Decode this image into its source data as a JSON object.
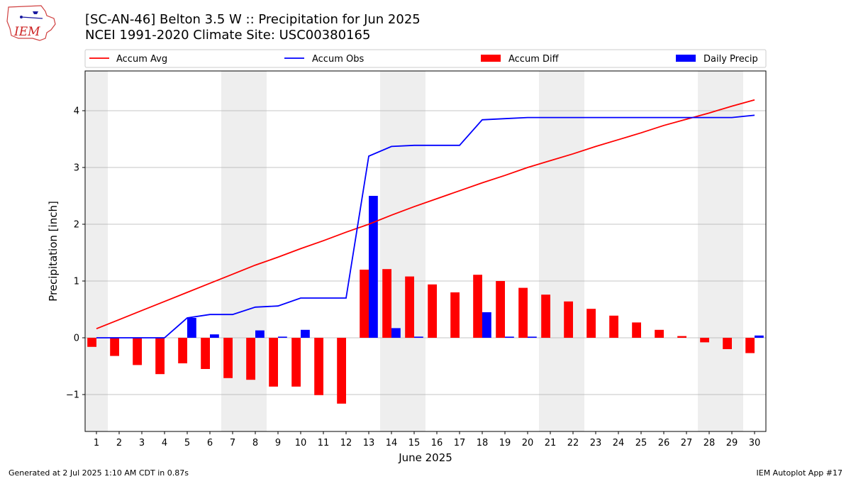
{
  "header": {
    "title_line1": "[SC-AN-46] Belton 3.5 W :: Precipitation for Jun 2025",
    "title_line2": "NCEI 1991-2020 Climate Site: USC00380165",
    "logo_text": "IEM"
  },
  "footer": {
    "left": "Generated at 2 Jul 2025 1:10 AM CDT in 0.87s",
    "right": "IEM Autoplot App #17"
  },
  "colors": {
    "accum_avg": "#ff0000",
    "accum_obs": "#0000ff",
    "accum_diff": "#ff0000",
    "daily_precip": "#0000ff",
    "weekend_shade": "#eeeeee",
    "grid": "#b0b0b0"
  },
  "chart_data": {
    "type": "bar",
    "xlabel": "June 2025",
    "ylabel": "Precipitation [inch]",
    "xlim": [
      0.5,
      30.5
    ],
    "ylim": [
      -1.65,
      4.7
    ],
    "yticks": [
      -1,
      0,
      1,
      2,
      3,
      4
    ],
    "ytick_labels": [
      "−1",
      "0",
      "1",
      "2",
      "3",
      "4"
    ],
    "grid": "horizontal",
    "legend_position": "top",
    "shaded_days": [
      1,
      7,
      8,
      14,
      15,
      21,
      22,
      28,
      29
    ],
    "days": [
      1,
      2,
      3,
      4,
      5,
      6,
      7,
      8,
      9,
      10,
      11,
      12,
      13,
      14,
      15,
      16,
      17,
      18,
      19,
      20,
      21,
      22,
      23,
      24,
      25,
      26,
      27,
      28,
      29,
      30
    ],
    "series": [
      {
        "name": "Accum Avg",
        "kind": "line",
        "values": [
          0.16,
          0.32,
          0.48,
          0.64,
          0.8,
          0.96,
          1.12,
          1.28,
          1.42,
          1.57,
          1.71,
          1.86,
          2.0,
          2.16,
          2.31,
          2.45,
          2.59,
          2.73,
          2.86,
          3.0,
          3.12,
          3.24,
          3.37,
          3.49,
          3.61,
          3.74,
          3.85,
          3.96,
          4.08,
          4.19
        ]
      },
      {
        "name": "Accum Obs",
        "kind": "line",
        "values": [
          0,
          0,
          0,
          0,
          0.35,
          0.41,
          0.41,
          0.54,
          0.56,
          0.7,
          0.7,
          0.7,
          3.2,
          3.37,
          3.39,
          3.39,
          3.39,
          3.84,
          3.86,
          3.88,
          3.88,
          3.88,
          3.88,
          3.88,
          3.88,
          3.88,
          3.88,
          3.88,
          3.88,
          3.92
        ]
      },
      {
        "name": "Accum Diff",
        "kind": "bar",
        "values": [
          -0.16,
          -0.32,
          -0.48,
          -0.64,
          -0.45,
          -0.55,
          -0.71,
          -0.74,
          -0.86,
          -0.86,
          -1.01,
          -1.16,
          1.2,
          1.21,
          1.08,
          0.94,
          0.8,
          1.11,
          1.0,
          0.88,
          0.76,
          0.64,
          0.51,
          0.39,
          0.27,
          0.14,
          0.03,
          -0.08,
          -0.2,
          -0.27
        ]
      },
      {
        "name": "Daily Precip",
        "kind": "bar",
        "values": [
          0,
          0,
          0,
          0,
          0.35,
          0.06,
          0,
          0.13,
          0.02,
          0.14,
          0,
          0,
          2.5,
          0.17,
          0.02,
          0,
          0,
          0.45,
          0.02,
          0.02,
          0,
          0,
          0,
          0,
          0,
          0,
          0,
          0,
          0,
          0.04
        ]
      }
    ]
  }
}
